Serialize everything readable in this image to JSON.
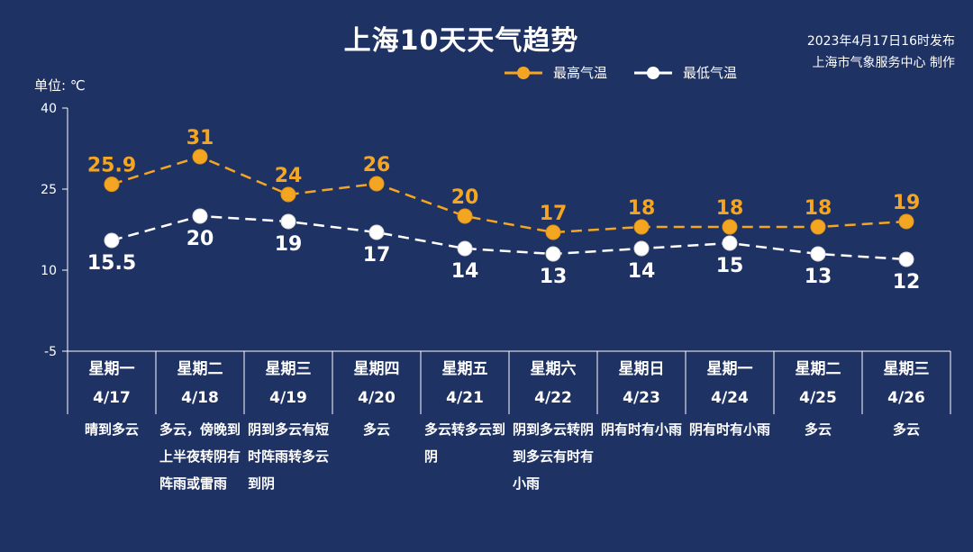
{
  "header": {
    "title": "上海10天天气趋势",
    "issue_line1": "2023年4月17日16时发布",
    "issue_line2": "上海市气象服务中心 制作"
  },
  "unit_label": "单位: ℃",
  "colors": {
    "background": "#1f3264",
    "high": "#f4a623",
    "low": "#ffffff"
  },
  "chart_data": {
    "type": "line",
    "title": "上海10天天气趋势",
    "ylabel": "单位: ℃",
    "ylim": [
      -5,
      40
    ],
    "yticks": [
      40,
      25,
      10,
      -5
    ],
    "legend_position": "top-right",
    "categories": [
      "4/17",
      "4/18",
      "4/19",
      "4/20",
      "4/21",
      "4/22",
      "4/23",
      "4/24",
      "4/25",
      "4/26"
    ],
    "series": [
      {
        "name": "最高气温",
        "values": [
          25.9,
          31,
          24,
          26,
          20,
          17,
          18,
          18,
          18,
          19
        ]
      },
      {
        "name": "最低气温",
        "values": [
          15.5,
          20,
          19,
          17,
          14,
          13,
          14,
          15,
          13,
          12
        ]
      }
    ]
  },
  "days": [
    {
      "weekday": "星期一",
      "date": "4/17",
      "desc": "晴到多云"
    },
    {
      "weekday": "星期二",
      "date": "4/18",
      "desc": "多云，傍晚到上半夜转阴有阵雨或雷雨"
    },
    {
      "weekday": "星期三",
      "date": "4/19",
      "desc": "阴到多云有短时阵雨转多云到阴"
    },
    {
      "weekday": "星期四",
      "date": "4/20",
      "desc": "多云"
    },
    {
      "weekday": "星期五",
      "date": "4/21",
      "desc": "多云转多云到阴"
    },
    {
      "weekday": "星期六",
      "date": "4/22",
      "desc": "阴到多云转阴到多云有时有小雨"
    },
    {
      "weekday": "星期日",
      "date": "4/23",
      "desc": "阴有时有小雨"
    },
    {
      "weekday": "星期一",
      "date": "4/24",
      "desc": "阴有时有小雨"
    },
    {
      "weekday": "星期二",
      "date": "4/25",
      "desc": "多云"
    },
    {
      "weekday": "星期三",
      "date": "4/26",
      "desc": "多云"
    }
  ]
}
